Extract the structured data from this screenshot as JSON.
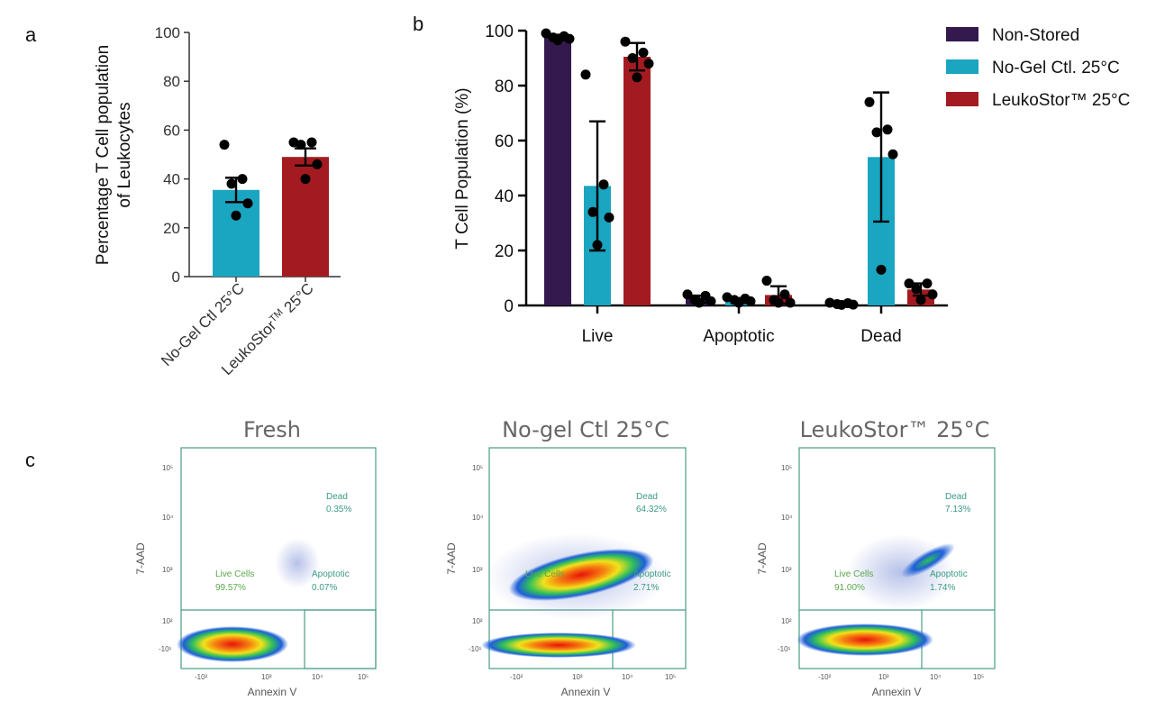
{
  "chart_data": [
    {
      "panel": "a",
      "type": "bar",
      "ylabel_line1": "Percentage T Cell population",
      "ylabel_line2": "of Leukocytes",
      "ylim": [
        0,
        100
      ],
      "yticks": [
        "0",
        "20",
        "40",
        "60",
        "80",
        "100"
      ],
      "categories": [
        "No-Gel Ctl 25°C",
        "LeukoStor™ 25°C"
      ],
      "category_label_main": [
        "No-Gel Ctl 25°C",
        "LeukoStor"
      ],
      "category_label_sup": [
        "",
        "TM"
      ],
      "category_label_tail": [
        "",
        " 25°C"
      ],
      "values": [
        35.5,
        49
      ],
      "errors": [
        5,
        3.5
      ],
      "points": [
        [
          54,
          40,
          38,
          30,
          25
        ],
        [
          55,
          55,
          54,
          46,
          40
        ]
      ],
      "colors": [
        "#1aa5c1",
        "#a31b20"
      ]
    },
    {
      "panel": "b",
      "type": "bar",
      "ylabel": "T Cell Population (%)",
      "ylim": [
        0,
        100
      ],
      "yticks": [
        "0",
        "20",
        "40",
        "60",
        "80",
        "100"
      ],
      "categories": [
        "Live",
        "Apoptotic",
        "Dead"
      ],
      "series": [
        {
          "name": "Non-Stored",
          "color": "#34194f",
          "values": [
            97.5,
            2.3,
            0.6
          ],
          "errors": [
            1,
            1.3,
            0.5
          ],
          "points": [
            [
              99,
              98,
              97.5,
              97,
              96.5
            ],
            [
              4,
              3.5,
              2,
              1.5,
              1
            ],
            [
              1,
              0.8,
              0.5,
              0.3,
              0.2
            ]
          ]
        },
        {
          "name": "No-Gel Ctl. 25°C",
          "color": "#1aa5c1",
          "values": [
            43.5,
            1.8,
            54
          ],
          "errors": [
            23.5,
            0.9,
            23.5
          ],
          "points": [
            [
              84,
              44,
              34,
              32,
              22
            ],
            [
              3,
              2.5,
              2,
              1.5,
              1
            ],
            [
              74,
              64,
              63,
              55,
              13
            ]
          ]
        },
        {
          "name": "LeukoStor™ 25°C",
          "color": "#a31b20",
          "values": [
            90.5,
            3.8,
            5.8
          ],
          "errors": [
            5,
            3.2,
            2.2
          ],
          "points": [
            [
              96,
              92,
              90,
              88,
              83
            ],
            [
              9,
              4,
              2,
              1,
              1
            ],
            [
              8,
              8,
              6,
              4,
              2
            ]
          ]
        }
      ]
    }
  ],
  "panel_labels": {
    "a": "a",
    "b": "b",
    "c": "c"
  },
  "flow": {
    "y_axis_label": "7-AAD",
    "x_axis_label": "Annexin V",
    "y_ticks": [
      "10⁵",
      "10⁴",
      "10³",
      "10²",
      "-10¹"
    ],
    "x_ticks": [
      "-10²",
      "10³",
      "10⁴",
      "10⁵"
    ],
    "live_label": "Live Cells",
    "apoptotic_label": "Apoptotic",
    "dead_label": "Dead",
    "panels": [
      {
        "title": "Fresh",
        "live": "99.57%",
        "apoptotic": "0.07%",
        "dead": "0.35%"
      },
      {
        "title": "No-gel Ctl 25°C",
        "live": "",
        "apoptotic": "2.71%",
        "dead": "64.32%"
      },
      {
        "title": "LeukoStor™ 25°C",
        "live": "91.00%",
        "apoptotic": "1.74%",
        "dead": "7.13%"
      }
    ]
  }
}
